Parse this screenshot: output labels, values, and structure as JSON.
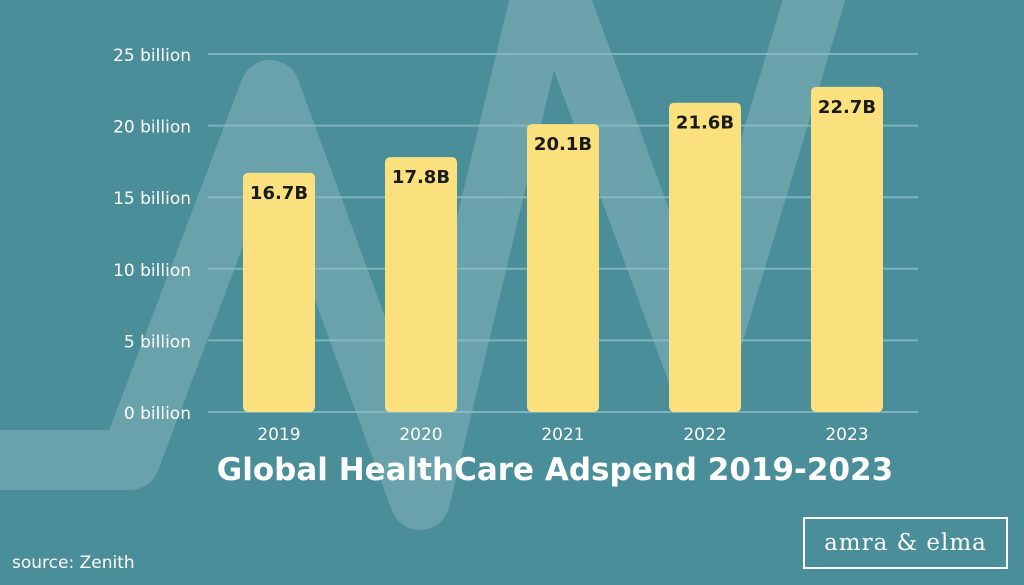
{
  "chart_data": {
    "type": "bar",
    "title": "Global HealthCare Adspend 2019-2023",
    "categories": [
      "2019",
      "2020",
      "2021",
      "2022",
      "2023"
    ],
    "values": [
      16.7,
      17.8,
      20.1,
      21.6,
      22.7
    ],
    "value_labels": [
      "16.7B",
      "17.8B",
      "20.1B",
      "21.6B",
      "22.7B"
    ],
    "y_ticks": [
      0,
      5,
      10,
      15,
      20,
      25
    ],
    "y_tick_labels": [
      "0 billion",
      "5 billion",
      "10 billion",
      "15 billion",
      "20 billion",
      "25 billion"
    ],
    "ylim": [
      0,
      25
    ],
    "xlabel": "",
    "ylabel": "",
    "grid": true,
    "colors": {
      "bar": "#fbe07e",
      "background": "#4a8e99",
      "grid": "#8fc0c8",
      "text": "#ffffff",
      "label": "#1a1a1a"
    }
  },
  "footer": {
    "source": "source: Zenith",
    "brand": "amra & elma"
  }
}
